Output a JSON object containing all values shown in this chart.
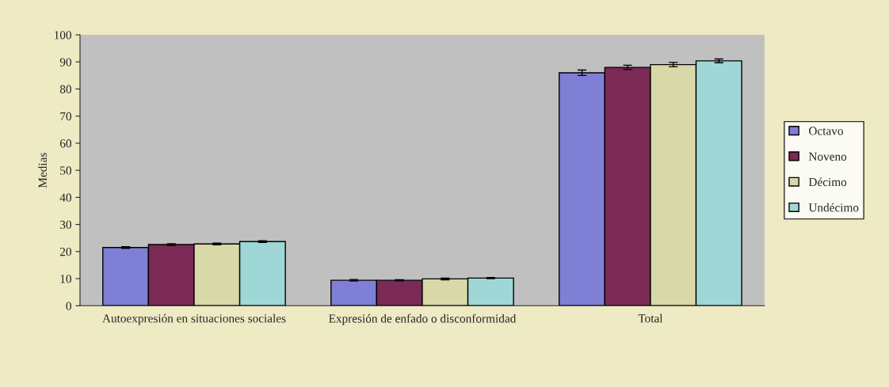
{
  "chart_data": {
    "type": "bar",
    "ylabel": "Medias",
    "categories": [
      "Autoexpresión en situaciones sociales",
      "Expresión de enfado o disconformidad",
      "Total"
    ],
    "series": [
      {
        "name": "Octavo",
        "color": "#7f7fd6",
        "values": [
          21.5,
          9.4,
          86
        ],
        "errors": [
          0.3,
          0.3,
          1
        ]
      },
      {
        "name": "Noveno",
        "color": "#7a2a55",
        "values": [
          22.6,
          9.4,
          88
        ],
        "errors": [
          0.3,
          0.2,
          0.8
        ]
      },
      {
        "name": "Décimo",
        "color": "#d8d8a8",
        "values": [
          22.8,
          9.9,
          89
        ],
        "errors": [
          0.3,
          0.3,
          0.8
        ]
      },
      {
        "name": "Undécimo",
        "color": "#9fd6d6",
        "values": [
          23.7,
          10.2,
          90.4
        ],
        "errors": [
          0.3,
          0.2,
          0.7
        ]
      }
    ],
    "ylim": [
      0,
      100
    ],
    "yticks": [
      0,
      10,
      20,
      30,
      40,
      50,
      60,
      70,
      80,
      90,
      100
    ],
    "grid": false,
    "legend": "right"
  }
}
